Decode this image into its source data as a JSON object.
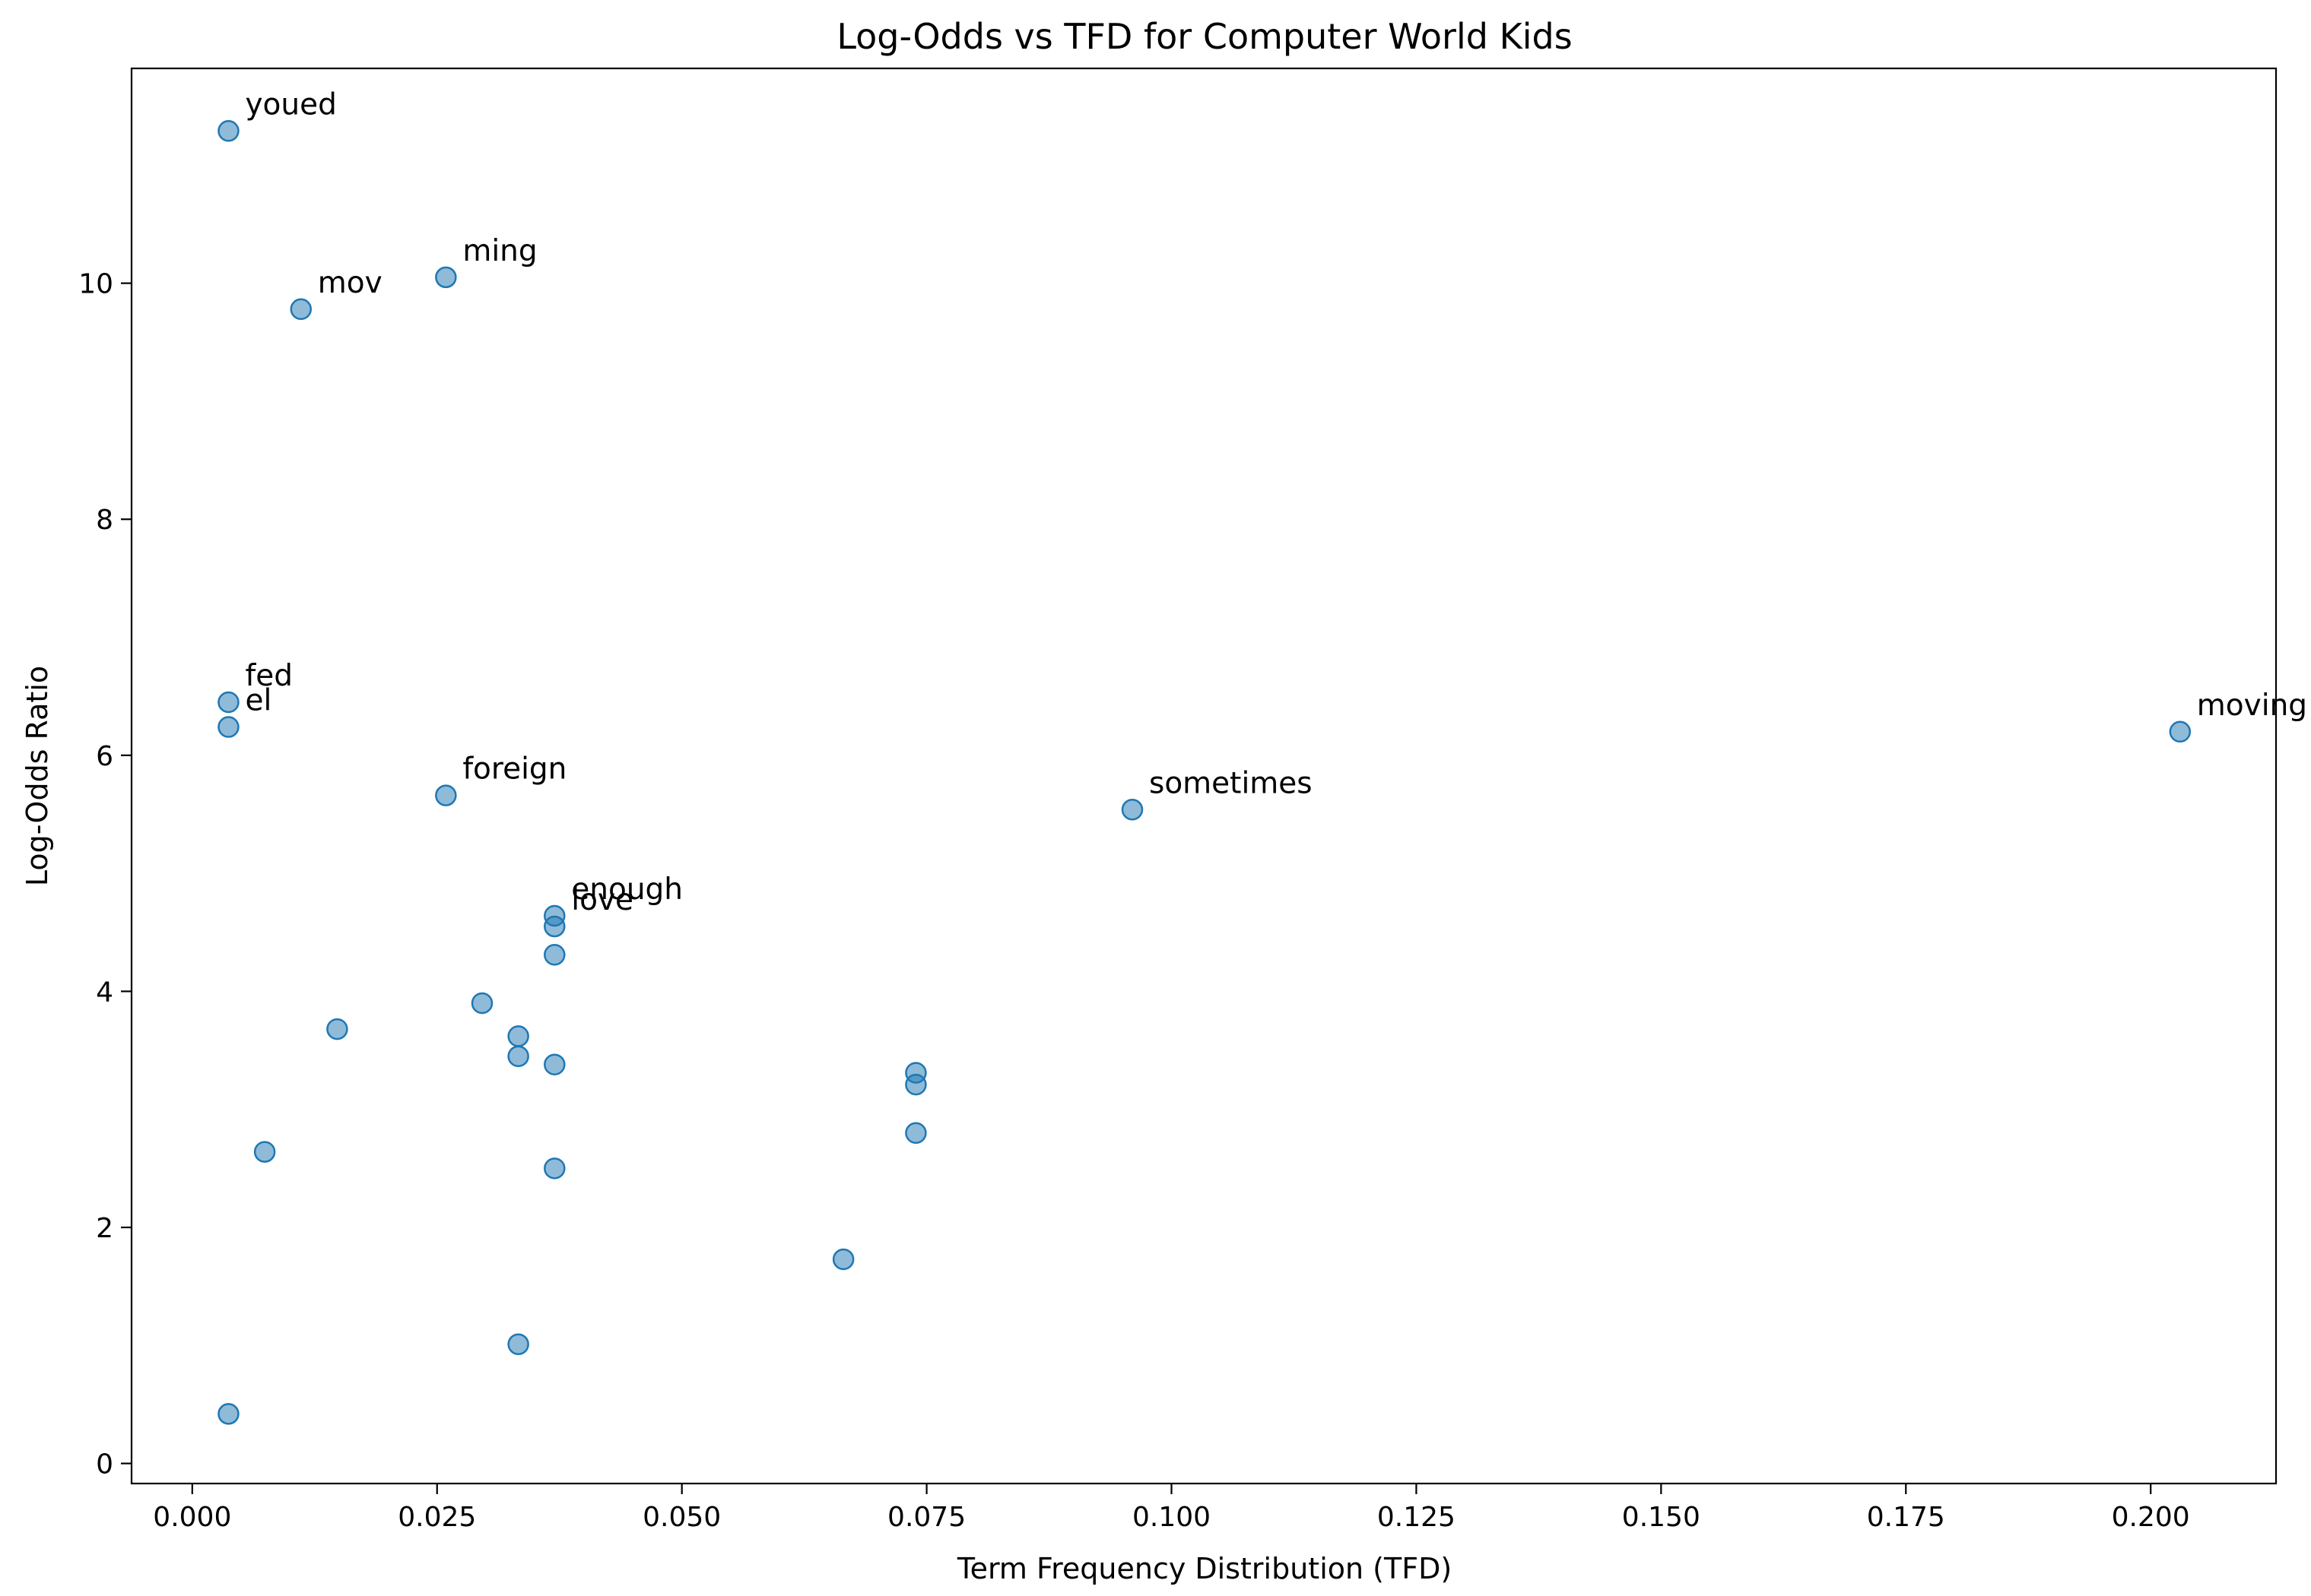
{
  "chart_data": {
    "type": "scatter",
    "title": "Log-Odds vs TFD for Computer World Kids",
    "xlabel": "Term Frequency Distribution (TFD)",
    "ylabel": "Log-Odds Ratio",
    "xlim": [
      -0.0062,
      0.2128
    ],
    "ylim": [
      -0.17,
      11.82
    ],
    "xticks": [
      0.0,
      0.025,
      0.05,
      0.075,
      0.1,
      0.125,
      0.15,
      0.175,
      0.2
    ],
    "xtick_labels": [
      "0.000",
      "0.025",
      "0.050",
      "0.075",
      "0.100",
      "0.125",
      "0.150",
      "0.175",
      "0.200"
    ],
    "yticks": [
      0,
      2,
      4,
      6,
      8,
      10
    ],
    "ytick_labels": [
      "0",
      "2",
      "4",
      "6",
      "8",
      "10"
    ],
    "grid": false,
    "color": "#1f77b4",
    "points": [
      {
        "x": 0.0037,
        "y": 11.29,
        "label": "youed"
      },
      {
        "x": 0.0259,
        "y": 10.05,
        "label": "ming"
      },
      {
        "x": 0.0111,
        "y": 9.78,
        "label": "mov"
      },
      {
        "x": 0.0037,
        "y": 6.45,
        "label": "fed"
      },
      {
        "x": 0.0037,
        "y": 6.24,
        "label": "el"
      },
      {
        "x": 0.203,
        "y": 6.2,
        "label": "moving"
      },
      {
        "x": 0.0259,
        "y": 5.66,
        "label": "foreign"
      },
      {
        "x": 0.096,
        "y": 5.54,
        "label": "sometimes"
      },
      {
        "x": 0.037,
        "y": 4.64,
        "label": "enough"
      },
      {
        "x": 0.037,
        "y": 4.55,
        "label": "love"
      },
      {
        "x": 0.037,
        "y": 4.31,
        "label": ""
      },
      {
        "x": 0.0296,
        "y": 3.9,
        "label": ""
      },
      {
        "x": 0.0148,
        "y": 3.68,
        "label": ""
      },
      {
        "x": 0.0333,
        "y": 3.62,
        "label": ""
      },
      {
        "x": 0.0333,
        "y": 3.45,
        "label": ""
      },
      {
        "x": 0.037,
        "y": 3.38,
        "label": ""
      },
      {
        "x": 0.0739,
        "y": 3.31,
        "label": ""
      },
      {
        "x": 0.0739,
        "y": 3.21,
        "label": ""
      },
      {
        "x": 0.0739,
        "y": 2.8,
        "label": ""
      },
      {
        "x": 0.0074,
        "y": 2.64,
        "label": ""
      },
      {
        "x": 0.037,
        "y": 2.5,
        "label": ""
      },
      {
        "x": 0.0665,
        "y": 1.73,
        "label": ""
      },
      {
        "x": 0.0333,
        "y": 1.01,
        "label": ""
      },
      {
        "x": 0.0037,
        "y": 0.42,
        "label": ""
      }
    ]
  }
}
